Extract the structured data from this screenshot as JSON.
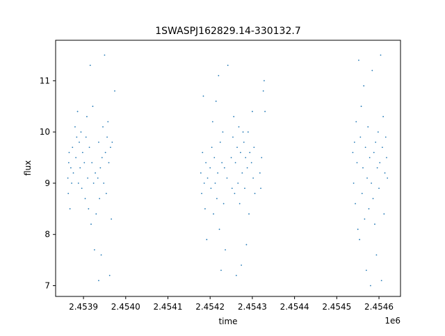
{
  "chart_data": {
    "type": "scatter",
    "title": "1SWASPJ162829.14-330132.7",
    "xlabel": "time",
    "ylabel": "flux",
    "x_offset_label": "1e6",
    "xlim": [
      2453834.0,
      2454651.0
    ],
    "ylim": [
      6.79,
      11.79
    ],
    "x_ticks": [
      {
        "value": 2453900,
        "label": "2.4539"
      },
      {
        "value": 2454000,
        "label": "2.4540"
      },
      {
        "value": 2454100,
        "label": "2.4541"
      },
      {
        "value": 2454200,
        "label": "2.4542"
      },
      {
        "value": 2454300,
        "label": "2.4543"
      },
      {
        "value": 2454400,
        "label": "2.4544"
      },
      {
        "value": 2454500,
        "label": "2.4545"
      },
      {
        "value": 2454600,
        "label": "2.4546"
      }
    ],
    "y_ticks": [
      {
        "value": 7,
        "label": "7"
      },
      {
        "value": 8,
        "label": "8"
      },
      {
        "value": 9,
        "label": "9"
      },
      {
        "value": 10,
        "label": "10"
      },
      {
        "value": 11,
        "label": "11"
      }
    ],
    "grid": false,
    "marker_color": "#1f77b4",
    "series": [
      {
        "values": [
          {
            "x": 2453863,
            "y": 9.1
          },
          {
            "x": 2453864,
            "y": 8.8
          },
          {
            "x": 2453865,
            "y": 9.4
          },
          {
            "x": 2453866,
            "y": 9.6
          },
          {
            "x": 2453868,
            "y": 8.5
          },
          {
            "x": 2453870,
            "y": 9.3
          },
          {
            "x": 2453872,
            "y": 9.0
          },
          {
            "x": 2453874,
            "y": 9.7
          },
          {
            "x": 2453876,
            "y": 9.2
          },
          {
            "x": 2453880,
            "y": 10.1
          },
          {
            "x": 2453882,
            "y": 9.5
          },
          {
            "x": 2453884,
            "y": 9.9
          },
          {
            "x": 2453886,
            "y": 10.4
          },
          {
            "x": 2453888,
            "y": 9.0
          },
          {
            "x": 2453890,
            "y": 9.8
          },
          {
            "x": 2453892,
            "y": 9.3
          },
          {
            "x": 2453894,
            "y": 10.0
          },
          {
            "x": 2453896,
            "y": 8.9
          },
          {
            "x": 2453898,
            "y": 9.6
          },
          {
            "x": 2453902,
            "y": 9.4
          },
          {
            "x": 2453904,
            "y": 8.7
          },
          {
            "x": 2453906,
            "y": 9.9
          },
          {
            "x": 2453908,
            "y": 10.3
          },
          {
            "x": 2453910,
            "y": 9.1
          },
          {
            "x": 2453912,
            "y": 8.5
          },
          {
            "x": 2453914,
            "y": 9.7
          },
          {
            "x": 2453916,
            "y": 11.3
          },
          {
            "x": 2453918,
            "y": 8.2
          },
          {
            "x": 2453920,
            "y": 9.4
          },
          {
            "x": 2453922,
            "y": 10.5
          },
          {
            "x": 2453924,
            "y": 9.0
          },
          {
            "x": 2453926,
            "y": 7.7
          },
          {
            "x": 2453928,
            "y": 9.2
          },
          {
            "x": 2453930,
            "y": 8.4
          },
          {
            "x": 2453934,
            "y": 9.1
          },
          {
            "x": 2453936,
            "y": 9.8
          },
          {
            "x": 2453938,
            "y": 8.7
          },
          {
            "x": 2453940,
            "y": 9.3
          },
          {
            "x": 2453942,
            "y": 7.6
          },
          {
            "x": 2453944,
            "y": 9.5
          },
          {
            "x": 2453946,
            "y": 10.1
          },
          {
            "x": 2453948,
            "y": 9.0
          },
          {
            "x": 2453950,
            "y": 11.5
          },
          {
            "x": 2453952,
            "y": 9.6
          },
          {
            "x": 2453954,
            "y": 8.8
          },
          {
            "x": 2453956,
            "y": 9.9
          },
          {
            "x": 2453958,
            "y": 10.2
          },
          {
            "x": 2453960,
            "y": 9.4
          },
          {
            "x": 2453962,
            "y": 7.2
          },
          {
            "x": 2453964,
            "y": 9.7
          },
          {
            "x": 2453966,
            "y": 8.3
          },
          {
            "x": 2453968,
            "y": 9.8
          },
          {
            "x": 2453936,
            "y": 7.1
          },
          {
            "x": 2453974,
            "y": 10.8
          },
          {
            "x": 2454178,
            "y": 9.2
          },
          {
            "x": 2454180,
            "y": 8.8
          },
          {
            "x": 2454182,
            "y": 9.6
          },
          {
            "x": 2454184,
            "y": 10.7
          },
          {
            "x": 2454186,
            "y": 9.0
          },
          {
            "x": 2454188,
            "y": 8.5
          },
          {
            "x": 2454190,
            "y": 9.4
          },
          {
            "x": 2454192,
            "y": 7.9
          },
          {
            "x": 2454194,
            "y": 9.1
          },
          {
            "x": 2454200,
            "y": 9.3
          },
          {
            "x": 2454202,
            "y": 8.9
          },
          {
            "x": 2454204,
            "y": 9.7
          },
          {
            "x": 2454206,
            "y": 10.2
          },
          {
            "x": 2454208,
            "y": 8.4
          },
          {
            "x": 2454210,
            "y": 9.5
          },
          {
            "x": 2454212,
            "y": 9.0
          },
          {
            "x": 2454214,
            "y": 10.6
          },
          {
            "x": 2454216,
            "y": 8.7
          },
          {
            "x": 2454218,
            "y": 9.2
          },
          {
            "x": 2454220,
            "y": 11.1
          },
          {
            "x": 2454222,
            "y": 8.1
          },
          {
            "x": 2454224,
            "y": 9.8
          },
          {
            "x": 2454226,
            "y": 7.3
          },
          {
            "x": 2454228,
            "y": 9.4
          },
          {
            "x": 2454230,
            "y": 10.0
          },
          {
            "x": 2454232,
            "y": 8.6
          },
          {
            "x": 2454234,
            "y": 9.3
          },
          {
            "x": 2454236,
            "y": 7.7
          },
          {
            "x": 2454240,
            "y": 9.1
          },
          {
            "x": 2454242,
            "y": 11.3
          },
          {
            "x": 2454250,
            "y": 9.5
          },
          {
            "x": 2454252,
            "y": 8.9
          },
          {
            "x": 2454254,
            "y": 9.9
          },
          {
            "x": 2454256,
            "y": 10.3
          },
          {
            "x": 2454258,
            "y": 8.8
          },
          {
            "x": 2454260,
            "y": 9.4
          },
          {
            "x": 2454262,
            "y": 7.2
          },
          {
            "x": 2454264,
            "y": 9.7
          },
          {
            "x": 2454266,
            "y": 9.0
          },
          {
            "x": 2454268,
            "y": 10.1
          },
          {
            "x": 2454270,
            "y": 8.6
          },
          {
            "x": 2454272,
            "y": 9.6
          },
          {
            "x": 2454274,
            "y": 7.4
          },
          {
            "x": 2454276,
            "y": 9.2
          },
          {
            "x": 2454278,
            "y": 10.0
          },
          {
            "x": 2454280,
            "y": 9.8
          },
          {
            "x": 2454282,
            "y": 8.9
          },
          {
            "x": 2454284,
            "y": 9.5
          },
          {
            "x": 2454286,
            "y": 7.8
          },
          {
            "x": 2454288,
            "y": 9.3
          },
          {
            "x": 2454290,
            "y": 10.0
          },
          {
            "x": 2454292,
            "y": 8.4
          },
          {
            "x": 2454294,
            "y": 9.6
          },
          {
            "x": 2454298,
            "y": 9.4
          },
          {
            "x": 2454300,
            "y": 10.4
          },
          {
            "x": 2454302,
            "y": 9.1
          },
          {
            "x": 2454304,
            "y": 9.7
          },
          {
            "x": 2454306,
            "y": 8.8
          },
          {
            "x": 2454318,
            "y": 9.2
          },
          {
            "x": 2454320,
            "y": 8.9
          },
          {
            "x": 2454322,
            "y": 9.5
          },
          {
            "x": 2454326,
            "y": 10.8
          },
          {
            "x": 2454328,
            "y": 11.0
          },
          {
            "x": 2454330,
            "y": 10.4
          },
          {
            "x": 2454538,
            "y": 9.6
          },
          {
            "x": 2454540,
            "y": 9.0
          },
          {
            "x": 2454542,
            "y": 9.8
          },
          {
            "x": 2454544,
            "y": 8.6
          },
          {
            "x": 2454546,
            "y": 10.2
          },
          {
            "x": 2454548,
            "y": 9.4
          },
          {
            "x": 2454550,
            "y": 8.1
          },
          {
            "x": 2454552,
            "y": 11.4
          },
          {
            "x": 2454554,
            "y": 7.9
          },
          {
            "x": 2454556,
            "y": 9.9
          },
          {
            "x": 2454558,
            "y": 10.5
          },
          {
            "x": 2454560,
            "y": 8.8
          },
          {
            "x": 2454562,
            "y": 9.3
          },
          {
            "x": 2454564,
            "y": 10.9
          },
          {
            "x": 2454566,
            "y": 8.3
          },
          {
            "x": 2454568,
            "y": 9.7
          },
          {
            "x": 2454570,
            "y": 7.3
          },
          {
            "x": 2454572,
            "y": 9.1
          },
          {
            "x": 2454574,
            "y": 10.1
          },
          {
            "x": 2454576,
            "y": 8.5
          },
          {
            "x": 2454578,
            "y": 9.5
          },
          {
            "x": 2454580,
            "y": 7.0
          },
          {
            "x": 2454582,
            "y": 9.0
          },
          {
            "x": 2454584,
            "y": 11.2
          },
          {
            "x": 2454586,
            "y": 8.7
          },
          {
            "x": 2454588,
            "y": 9.6
          },
          {
            "x": 2454590,
            "y": 8.2
          },
          {
            "x": 2454592,
            "y": 9.8
          },
          {
            "x": 2454594,
            "y": 7.6
          },
          {
            "x": 2454596,
            "y": 9.3
          },
          {
            "x": 2454598,
            "y": 10.0
          },
          {
            "x": 2454600,
            "y": 8.9
          },
          {
            "x": 2454602,
            "y": 9.4
          },
          {
            "x": 2454604,
            "y": 11.5
          },
          {
            "x": 2454606,
            "y": 7.1
          },
          {
            "x": 2454608,
            "y": 9.7
          },
          {
            "x": 2454610,
            "y": 10.3
          },
          {
            "x": 2454612,
            "y": 8.4
          },
          {
            "x": 2454614,
            "y": 9.2
          },
          {
            "x": 2454616,
            "y": 9.9
          },
          {
            "x": 2454618,
            "y": 9.5
          },
          {
            "x": 2454620,
            "y": 9.1
          }
        ]
      }
    ]
  }
}
